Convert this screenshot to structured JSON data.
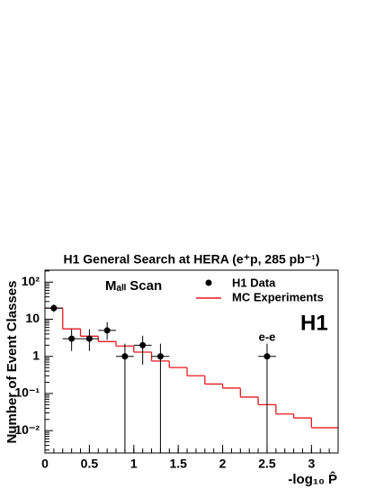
{
  "chart_data": {
    "type": "histogram",
    "title": "H1 General Search at HERA (e⁺p, 285 pb⁻¹)",
    "y_label": "Number of Event Classes",
    "x_label": "-log₁₀ P̂",
    "annotations": [
      "Mₐₗₗ Scan",
      "H1",
      "e-e"
    ],
    "xlim": [
      0,
      3.3
    ],
    "xticks": [
      0,
      0.5,
      1,
      1.5,
      2,
      2.5,
      3
    ],
    "ylim": [
      0.0025,
      210
    ],
    "yticks": [
      {
        "value": 0.01,
        "label": "10⁻²"
      },
      {
        "value": 0.1,
        "label": "10⁻¹"
      },
      1,
      10,
      {
        "value": 100,
        "label": "10²"
      }
    ],
    "log_y": true,
    "series": [
      {
        "name": "H1 Data",
        "type": "errorbar",
        "color": "#000000",
        "x": [
          0.1,
          0.3,
          0.5,
          0.7,
          0.9,
          1.1,
          1.3,
          2.5
        ],
        "x_errors": [
          0.1,
          0.1,
          0.1,
          0.1,
          0.1,
          0.1,
          0.1,
          0.1
        ],
        "values": [
          20,
          3,
          3,
          5,
          1,
          2,
          1,
          1
        ],
        "errors_low": [
          4.4,
          1.6,
          1.6,
          2.2,
          1,
          1.4,
          1,
          1
        ],
        "errors_high": [
          5.4,
          2.4,
          2.4,
          3.4,
          1.2,
          1.6,
          1.2,
          1.2
        ]
      },
      {
        "name": "MC Experiments",
        "type": "histogram",
        "color": "#e8191c",
        "bins": [
          0,
          0.2,
          0.4,
          0.6,
          0.8,
          1.0,
          1.2,
          1.4,
          1.6,
          1.8,
          2.0,
          2.2,
          2.4,
          2.6,
          2.8,
          3.0,
          3.3
        ],
        "values": [
          20,
          5.5,
          3.5,
          2.5,
          1.9,
          1.3,
          0.75,
          0.5,
          0.3,
          0.18,
          0.14,
          0.08,
          0.05,
          0.028,
          0.022,
          0.012
        ]
      }
    ]
  }
}
